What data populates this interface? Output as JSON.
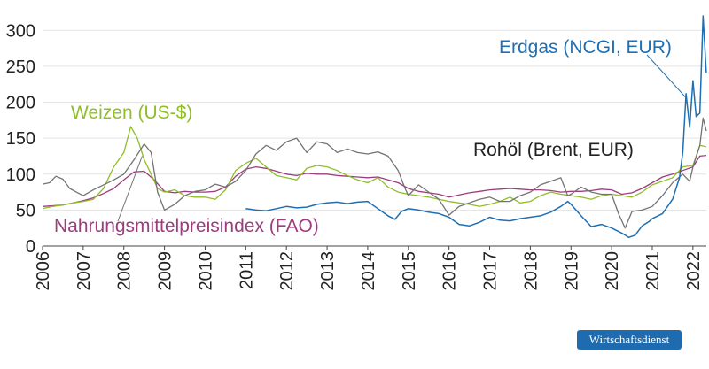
{
  "brand": {
    "label": "Wirtschaftsdienst",
    "color": "#1f6bb0"
  },
  "chart_data": {
    "type": "line",
    "title": "",
    "xlabel": "",
    "ylabel": "",
    "xlim": [
      2006.0,
      2022.33
    ],
    "ylim": [
      0,
      320
    ],
    "y_ticks": [
      0,
      50,
      100,
      150,
      200,
      250,
      300
    ],
    "x_ticks": [
      "2006",
      "2007",
      "2008",
      "2009",
      "2010",
      "2011",
      "2012",
      "2013",
      "2014",
      "2015",
      "2016",
      "2017",
      "2018",
      "2019",
      "2020",
      "2021",
      "2022"
    ],
    "grid": "horizontal",
    "legend": "inline labels",
    "series": [
      {
        "name": "Erdgas (NCGI, EUR)",
        "color": "#1f6fb2",
        "points": [
          [
            2011.0,
            52
          ],
          [
            2011.25,
            50
          ],
          [
            2011.5,
            49
          ],
          [
            2011.75,
            52
          ],
          [
            2012.0,
            55
          ],
          [
            2012.25,
            53
          ],
          [
            2012.5,
            54
          ],
          [
            2012.75,
            58
          ],
          [
            2013.0,
            60
          ],
          [
            2013.25,
            61
          ],
          [
            2013.5,
            59
          ],
          [
            2013.75,
            61
          ],
          [
            2014.0,
            62
          ],
          [
            2014.25,
            52
          ],
          [
            2014.5,
            42
          ],
          [
            2014.67,
            37
          ],
          [
            2014.83,
            48
          ],
          [
            2015.0,
            52
          ],
          [
            2015.25,
            50
          ],
          [
            2015.5,
            47
          ],
          [
            2015.75,
            45
          ],
          [
            2016.0,
            40
          ],
          [
            2016.25,
            30
          ],
          [
            2016.5,
            28
          ],
          [
            2016.75,
            33
          ],
          [
            2017.0,
            40
          ],
          [
            2017.25,
            36
          ],
          [
            2017.5,
            35
          ],
          [
            2017.75,
            38
          ],
          [
            2018.0,
            40
          ],
          [
            2018.25,
            42
          ],
          [
            2018.5,
            47
          ],
          [
            2018.75,
            55
          ],
          [
            2018.92,
            62
          ],
          [
            2019.0,
            58
          ],
          [
            2019.25,
            42
          ],
          [
            2019.5,
            27
          ],
          [
            2019.75,
            30
          ],
          [
            2020.0,
            25
          ],
          [
            2020.25,
            18
          ],
          [
            2020.42,
            12
          ],
          [
            2020.58,
            15
          ],
          [
            2020.75,
            28
          ],
          [
            2020.92,
            34
          ],
          [
            2021.0,
            38
          ],
          [
            2021.25,
            45
          ],
          [
            2021.5,
            65
          ],
          [
            2021.67,
            95
          ],
          [
            2021.75,
            130
          ],
          [
            2021.83,
            212
          ],
          [
            2021.92,
            165
          ],
          [
            2022.0,
            230
          ],
          [
            2022.08,
            180
          ],
          [
            2022.17,
            185
          ],
          [
            2022.25,
            320
          ],
          [
            2022.33,
            240
          ]
        ]
      },
      {
        "name": "Rohöl (Brent, EUR)",
        "color": "#737373",
        "points": [
          [
            2006.0,
            86
          ],
          [
            2006.17,
            88
          ],
          [
            2006.33,
            97
          ],
          [
            2006.5,
            93
          ],
          [
            2006.67,
            80
          ],
          [
            2006.83,
            75
          ],
          [
            2007.0,
            70
          ],
          [
            2007.25,
            78
          ],
          [
            2007.5,
            85
          ],
          [
            2007.75,
            92
          ],
          [
            2008.0,
            100
          ],
          [
            2008.25,
            120
          ],
          [
            2008.5,
            142
          ],
          [
            2008.67,
            130
          ],
          [
            2008.83,
            75
          ],
          [
            2009.0,
            50
          ],
          [
            2009.25,
            58
          ],
          [
            2009.5,
            70
          ],
          [
            2009.75,
            76
          ],
          [
            2010.0,
            78
          ],
          [
            2010.25,
            86
          ],
          [
            2010.5,
            82
          ],
          [
            2010.75,
            90
          ],
          [
            2011.0,
            105
          ],
          [
            2011.25,
            128
          ],
          [
            2011.5,
            140
          ],
          [
            2011.75,
            133
          ],
          [
            2012.0,
            145
          ],
          [
            2012.25,
            150
          ],
          [
            2012.5,
            130
          ],
          [
            2012.75,
            145
          ],
          [
            2013.0,
            142
          ],
          [
            2013.25,
            130
          ],
          [
            2013.5,
            135
          ],
          [
            2013.75,
            130
          ],
          [
            2014.0,
            128
          ],
          [
            2014.25,
            131
          ],
          [
            2014.5,
            125
          ],
          [
            2014.75,
            105
          ],
          [
            2014.92,
            80
          ],
          [
            2015.0,
            70
          ],
          [
            2015.25,
            85
          ],
          [
            2015.5,
            75
          ],
          [
            2015.75,
            65
          ],
          [
            2016.0,
            43
          ],
          [
            2016.25,
            55
          ],
          [
            2016.5,
            60
          ],
          [
            2016.75,
            65
          ],
          [
            2017.0,
            68
          ],
          [
            2017.25,
            62
          ],
          [
            2017.5,
            62
          ],
          [
            2017.75,
            70
          ],
          [
            2018.0,
            75
          ],
          [
            2018.25,
            85
          ],
          [
            2018.5,
            90
          ],
          [
            2018.75,
            95
          ],
          [
            2018.92,
            70
          ],
          [
            2019.0,
            72
          ],
          [
            2019.25,
            82
          ],
          [
            2019.5,
            75
          ],
          [
            2019.75,
            72
          ],
          [
            2020.0,
            72
          ],
          [
            2020.17,
            45
          ],
          [
            2020.33,
            25
          ],
          [
            2020.5,
            48
          ],
          [
            2020.75,
            50
          ],
          [
            2021.0,
            55
          ],
          [
            2021.25,
            70
          ],
          [
            2021.5,
            88
          ],
          [
            2021.75,
            100
          ],
          [
            2021.92,
            90
          ],
          [
            2022.0,
            110
          ],
          [
            2022.17,
            140
          ],
          [
            2022.25,
            178
          ],
          [
            2022.33,
            160
          ]
        ]
      },
      {
        "name": "Weizen (US-$)",
        "color": "#8fbe28",
        "points": [
          [
            2006.0,
            52
          ],
          [
            2006.25,
            55
          ],
          [
            2006.5,
            57
          ],
          [
            2006.75,
            60
          ],
          [
            2007.0,
            62
          ],
          [
            2007.25,
            65
          ],
          [
            2007.5,
            80
          ],
          [
            2007.75,
            110
          ],
          [
            2008.0,
            130
          ],
          [
            2008.17,
            166
          ],
          [
            2008.33,
            150
          ],
          [
            2008.5,
            120
          ],
          [
            2008.67,
            100
          ],
          [
            2008.83,
            80
          ],
          [
            2009.0,
            75
          ],
          [
            2009.25,
            78
          ],
          [
            2009.5,
            70
          ],
          [
            2009.75,
            68
          ],
          [
            2010.0,
            68
          ],
          [
            2010.25,
            65
          ],
          [
            2010.5,
            78
          ],
          [
            2010.75,
            105
          ],
          [
            2011.0,
            115
          ],
          [
            2011.25,
            122
          ],
          [
            2011.5,
            110
          ],
          [
            2011.75,
            98
          ],
          [
            2012.0,
            95
          ],
          [
            2012.25,
            92
          ],
          [
            2012.5,
            108
          ],
          [
            2012.75,
            112
          ],
          [
            2013.0,
            110
          ],
          [
            2013.25,
            105
          ],
          [
            2013.5,
            98
          ],
          [
            2013.75,
            92
          ],
          [
            2014.0,
            88
          ],
          [
            2014.25,
            95
          ],
          [
            2014.5,
            82
          ],
          [
            2014.75,
            75
          ],
          [
            2015.0,
            72
          ],
          [
            2015.25,
            70
          ],
          [
            2015.5,
            68
          ],
          [
            2015.75,
            65
          ],
          [
            2016.0,
            62
          ],
          [
            2016.25,
            60
          ],
          [
            2016.5,
            58
          ],
          [
            2016.75,
            55
          ],
          [
            2017.0,
            58
          ],
          [
            2017.25,
            62
          ],
          [
            2017.5,
            68
          ],
          [
            2017.75,
            60
          ],
          [
            2018.0,
            62
          ],
          [
            2018.25,
            70
          ],
          [
            2018.5,
            75
          ],
          [
            2018.75,
            72
          ],
          [
            2019.0,
            70
          ],
          [
            2019.25,
            68
          ],
          [
            2019.5,
            65
          ],
          [
            2019.75,
            70
          ],
          [
            2020.0,
            72
          ],
          [
            2020.25,
            70
          ],
          [
            2020.5,
            68
          ],
          [
            2020.75,
            75
          ],
          [
            2021.0,
            85
          ],
          [
            2021.25,
            90
          ],
          [
            2021.5,
            95
          ],
          [
            2021.75,
            110
          ],
          [
            2022.0,
            112
          ],
          [
            2022.17,
            140
          ],
          [
            2022.33,
            138
          ]
        ]
      },
      {
        "name": "Nahrungsmittelpreisindex (FAO)",
        "color": "#9b3d7e",
        "points": [
          [
            2006.0,
            55
          ],
          [
            2006.25,
            56
          ],
          [
            2006.5,
            57
          ],
          [
            2006.75,
            60
          ],
          [
            2007.0,
            63
          ],
          [
            2007.25,
            67
          ],
          [
            2007.5,
            73
          ],
          [
            2007.75,
            80
          ],
          [
            2008.0,
            92
          ],
          [
            2008.25,
            103
          ],
          [
            2008.5,
            104
          ],
          [
            2008.75,
            92
          ],
          [
            2009.0,
            76
          ],
          [
            2009.25,
            74
          ],
          [
            2009.5,
            76
          ],
          [
            2009.75,
            75
          ],
          [
            2010.0,
            75
          ],
          [
            2010.25,
            76
          ],
          [
            2010.5,
            82
          ],
          [
            2010.75,
            97
          ],
          [
            2011.0,
            107
          ],
          [
            2011.25,
            110
          ],
          [
            2011.5,
            108
          ],
          [
            2011.75,
            104
          ],
          [
            2012.0,
            100
          ],
          [
            2012.25,
            98
          ],
          [
            2012.5,
            101
          ],
          [
            2012.75,
            100
          ],
          [
            2013.0,
            100
          ],
          [
            2013.25,
            98
          ],
          [
            2013.5,
            97
          ],
          [
            2013.75,
            96
          ],
          [
            2014.0,
            95
          ],
          [
            2014.25,
            96
          ],
          [
            2014.5,
            92
          ],
          [
            2014.75,
            88
          ],
          [
            2015.0,
            80
          ],
          [
            2015.25,
            76
          ],
          [
            2015.5,
            74
          ],
          [
            2015.75,
            72
          ],
          [
            2016.0,
            68
          ],
          [
            2016.25,
            71
          ],
          [
            2016.5,
            74
          ],
          [
            2016.75,
            76
          ],
          [
            2017.0,
            78
          ],
          [
            2017.25,
            79
          ],
          [
            2017.5,
            80
          ],
          [
            2017.75,
            79
          ],
          [
            2018.0,
            78
          ],
          [
            2018.25,
            78
          ],
          [
            2018.5,
            77
          ],
          [
            2018.75,
            75
          ],
          [
            2019.0,
            76
          ],
          [
            2019.25,
            76
          ],
          [
            2019.5,
            77
          ],
          [
            2019.75,
            79
          ],
          [
            2020.0,
            78
          ],
          [
            2020.25,
            72
          ],
          [
            2020.5,
            74
          ],
          [
            2020.75,
            80
          ],
          [
            2021.0,
            88
          ],
          [
            2021.25,
            96
          ],
          [
            2021.5,
            100
          ],
          [
            2021.75,
            105
          ],
          [
            2022.0,
            110
          ],
          [
            2022.17,
            125
          ],
          [
            2022.33,
            126
          ]
        ]
      }
    ],
    "annotations": [
      {
        "text": "Erdgas (NCGI, EUR)",
        "series": "Erdgas (NCGI, EUR)"
      },
      {
        "text": "Rohöl (Brent, EUR)",
        "series": "Rohöl (Brent, EUR)"
      },
      {
        "text": "Weizen (US-$)",
        "series": "Weizen (US-$)"
      },
      {
        "text": "Nahrungsmittelpreisindex (FAO)",
        "series": "Nahrungsmittelpreisindex (FAO)"
      }
    ]
  }
}
